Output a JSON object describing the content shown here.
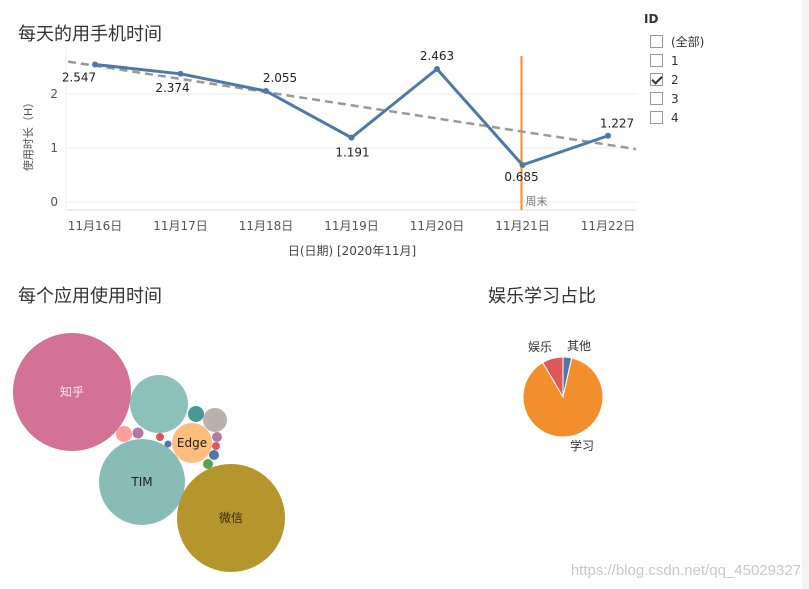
{
  "line_chart": {
    "title": "每天的用手机时间",
    "chart_data": {
      "type": "line",
      "categories": [
        "11月16日",
        "11月17日",
        "11月18日",
        "11月19日",
        "11月20日",
        "11月21日",
        "11月22日"
      ],
      "values": [
        2.547,
        2.374,
        2.055,
        1.191,
        2.463,
        0.685,
        1.227
      ],
      "labels": [
        "2.547",
        "2.374",
        "2.055",
        "1.191",
        "2.463",
        "0.685",
        "1.227"
      ],
      "xlabel": "日(日期) [2020年11月]",
      "ylabel": "使用时长（H）",
      "yticks": [
        "0",
        "1",
        "2"
      ],
      "ylim": [
        -0.15,
        2.75
      ],
      "trend_line": {
        "start": 2.6,
        "end": 0.98
      },
      "reference_line": {
        "category": "11月21日",
        "label": "周末"
      },
      "colors": {
        "line": "#4e79a7",
        "trend": "#999999",
        "reference": "#f28e2b"
      }
    }
  },
  "filter": {
    "title": "ID",
    "items": [
      {
        "label": "(全部)",
        "checked": false
      },
      {
        "label": "1",
        "checked": false
      },
      {
        "label": "2",
        "checked": true
      },
      {
        "label": "3",
        "checked": false
      },
      {
        "label": "4",
        "checked": false
      }
    ]
  },
  "bubble_chart": {
    "title": "每个应用使用时间",
    "labels": {
      "zhihu": "知乎",
      "tim": "TIM",
      "wechat": "微信",
      "edge": "Edge"
    },
    "colors": {
      "zhihu": "#d37295",
      "teal": "#8cc0bb",
      "tim": "#8abcb7",
      "wechat": "#b4962c",
      "edge": "#ffbe7d",
      "small_teal": "#499894",
      "gray": "#bab0ac",
      "pink": "#ff9d9a",
      "mauve": "#b07aa1",
      "red": "#e15759",
      "blue": "#4e79a7",
      "green": "#59a14f"
    }
  },
  "pie_chart": {
    "title": "娱乐学习占比",
    "chart_data": {
      "type": "pie",
      "slices": [
        {
          "label": "学习",
          "value": 0.88,
          "color": "#f28e2b"
        },
        {
          "label": "娱乐",
          "value": 0.085,
          "color": "#e15759"
        },
        {
          "label": "其他",
          "value": 0.035,
          "color": "#4e79a7"
        }
      ]
    }
  },
  "watermark": "https://blog.csdn.net/qq_45029327"
}
